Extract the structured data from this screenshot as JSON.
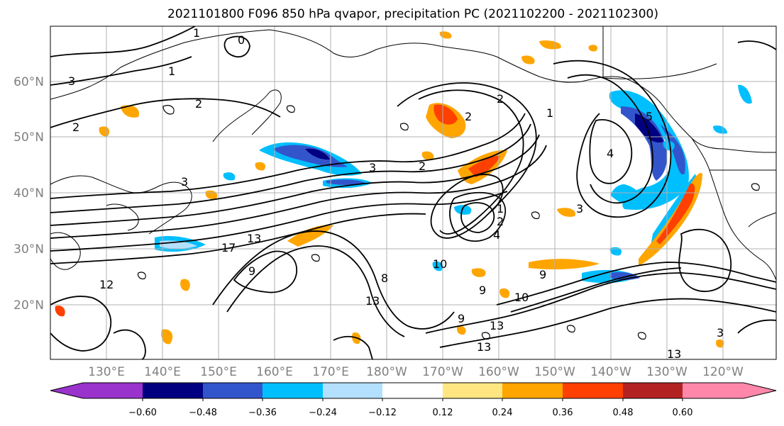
{
  "title": "2021101800 F096 850 hPa qvapor, precipitation PC (2021102200 - 2021102300)",
  "lat_labels": [
    "60°N",
    "50°N",
    "40°N",
    "30°N",
    "20°N"
  ],
  "lon_labels": [
    "130°E",
    "140°E",
    "150°E",
    "160°E",
    "170°E",
    "180°W",
    "170°W",
    "160°W",
    "150°W",
    "140°W",
    "130°W",
    "120°W"
  ],
  "colorbar": {
    "ticks": [
      "−0.60",
      "−0.48",
      "−0.36",
      "−0.24",
      "−0.12",
      "0.12",
      "0.24",
      "0.36",
      "0.48",
      "0.60"
    ],
    "colors": [
      "#9933cc",
      "#000080",
      "#3355cc",
      "#00bfff",
      "#b3e0ff",
      "#ffffff",
      "#ffe680",
      "#ffa500",
      "#ff4000",
      "#b22222",
      "#ff88aa"
    ]
  },
  "contour_labels": [
    "1",
    "0",
    "1",
    "3",
    "2",
    "1",
    "2",
    "3",
    "3",
    "2",
    "2",
    "2",
    "1",
    "2",
    "4",
    "4",
    "3",
    "5",
    "17",
    "13",
    "9",
    "8",
    "13",
    "10",
    "9",
    "10",
    "9",
    "9",
    "13",
    "13",
    "12",
    "13",
    "3"
  ]
}
